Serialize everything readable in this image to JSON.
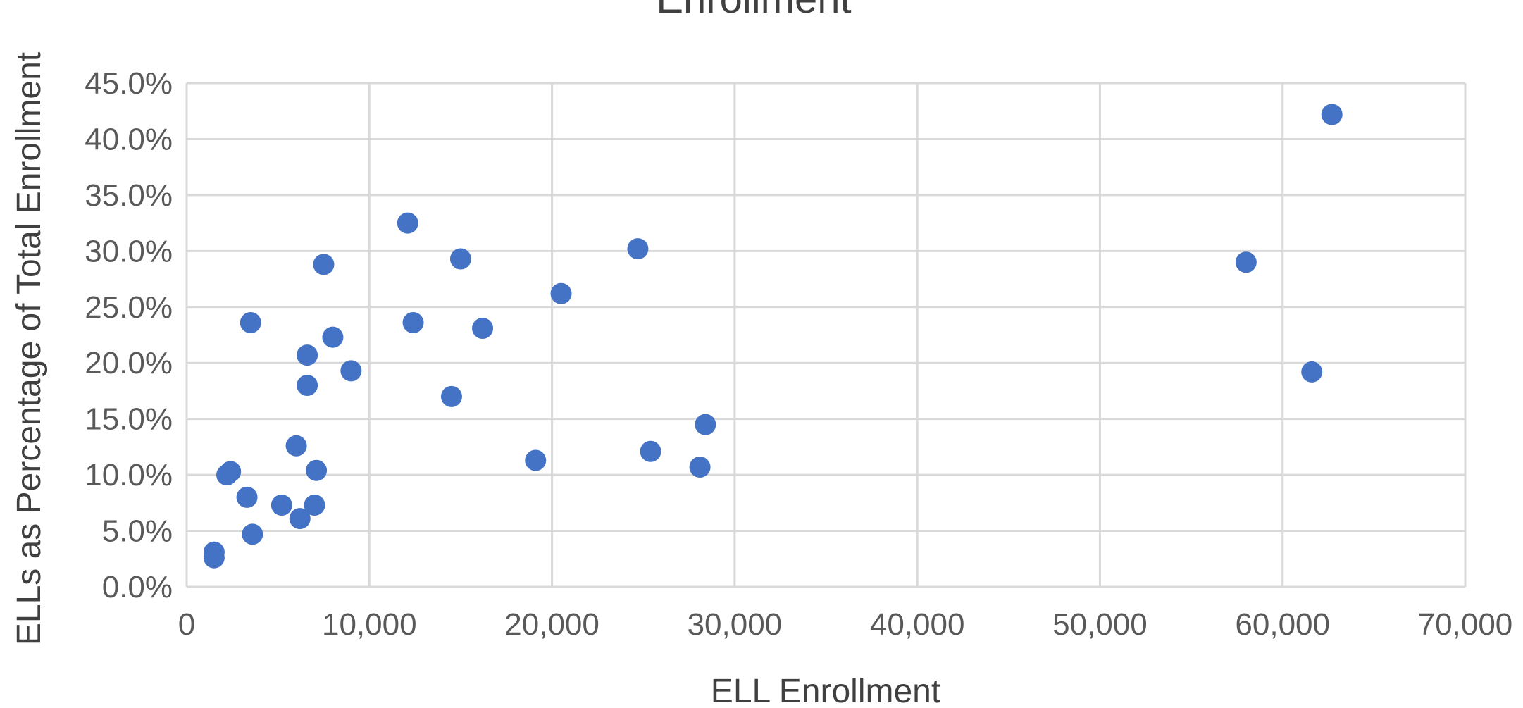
{
  "chart_data": {
    "type": "scatter",
    "title": "Enrollment",
    "xlabel": "ELL Enrollment",
    "ylabel": "ELLs as Percentage of Total Enrollment",
    "xlim": [
      0,
      70000
    ],
    "ylim": [
      0,
      45
    ],
    "x_ticks": [
      "0",
      "10,000",
      "20,000",
      "30,000",
      "40,000",
      "50,000",
      "60,000",
      "70,000"
    ],
    "y_ticks": [
      "0.0%",
      "5.0%",
      "10.0%",
      "15.0%",
      "20.0%",
      "25.0%",
      "30.0%",
      "35.0%",
      "40.0%",
      "45.0%"
    ],
    "grid": true,
    "marker_color": "#4472c4",
    "points": [
      {
        "x": 1500,
        "y": 3.1
      },
      {
        "x": 1500,
        "y": 2.6
      },
      {
        "x": 2200,
        "y": 10.0
      },
      {
        "x": 2400,
        "y": 10.3
      },
      {
        "x": 3300,
        "y": 8.0
      },
      {
        "x": 3500,
        "y": 23.6
      },
      {
        "x": 3600,
        "y": 4.7
      },
      {
        "x": 5200,
        "y": 7.3
      },
      {
        "x": 6000,
        "y": 12.6
      },
      {
        "x": 6200,
        "y": 6.1
      },
      {
        "x": 6600,
        "y": 20.7
      },
      {
        "x": 6600,
        "y": 18.0
      },
      {
        "x": 7000,
        "y": 7.3
      },
      {
        "x": 7100,
        "y": 10.4
      },
      {
        "x": 7500,
        "y": 28.8
      },
      {
        "x": 8000,
        "y": 22.3
      },
      {
        "x": 9000,
        "y": 19.3
      },
      {
        "x": 12100,
        "y": 32.5
      },
      {
        "x": 12400,
        "y": 23.6
      },
      {
        "x": 14500,
        "y": 17.0
      },
      {
        "x": 15000,
        "y": 29.3
      },
      {
        "x": 16200,
        "y": 23.1
      },
      {
        "x": 19100,
        "y": 11.3
      },
      {
        "x": 20500,
        "y": 26.2
      },
      {
        "x": 24700,
        "y": 30.2
      },
      {
        "x": 25400,
        "y": 12.1
      },
      {
        "x": 28100,
        "y": 10.7
      },
      {
        "x": 28400,
        "y": 14.5
      },
      {
        "x": 58000,
        "y": 29.0
      },
      {
        "x": 61600,
        "y": 19.2
      },
      {
        "x": 62700,
        "y": 42.2
      }
    ]
  }
}
